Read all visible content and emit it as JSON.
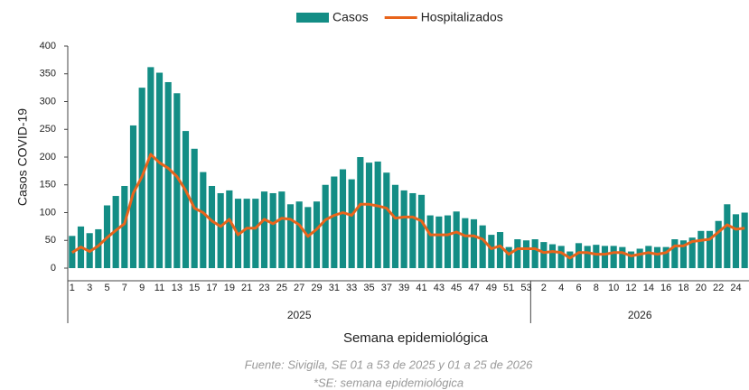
{
  "chart_data": {
    "type": "bar_line",
    "y_label": "Casos COVID-19",
    "x_label": "Semana epidemiológica",
    "groups": [
      "2025",
      "2026"
    ],
    "notes": [
      "Fuente: Sivigila, SE 01 a 53 de 2025 y 01 a 25 de 2026",
      "*SE: semana epidemiológica"
    ],
    "categories": [
      "1",
      null,
      "3",
      null,
      "5",
      null,
      "7",
      null,
      "9",
      null,
      "11",
      null,
      "13",
      null,
      "15",
      null,
      "17",
      null,
      "19",
      null,
      "21",
      null,
      "23",
      null,
      "25",
      null,
      "27",
      null,
      "29",
      null,
      "31",
      null,
      "33",
      null,
      "35",
      null,
      "37",
      null,
      "39",
      null,
      "41",
      null,
      "43",
      null,
      "45",
      null,
      "47",
      null,
      "49",
      null,
      "51",
      null,
      "53",
      null,
      "2",
      null,
      "4",
      null,
      "6",
      null,
      "8",
      null,
      "10",
      null,
      "12",
      null,
      "14",
      null,
      "16",
      null,
      "18",
      null,
      "20",
      null,
      "22",
      null,
      "24",
      null
    ],
    "series": [
      {
        "name": "Casos",
        "kind": "bar",
        "color": "#138d85",
        "values": [
          58,
          75,
          63,
          70,
          113,
          130,
          148,
          257,
          325,
          362,
          352,
          335,
          315,
          247,
          215,
          173,
          148,
          135,
          140,
          125,
          125,
          125,
          138,
          135,
          138,
          115,
          120,
          110,
          120,
          150,
          165,
          178,
          160,
          200,
          190,
          192,
          172,
          150,
          140,
          135,
          132,
          95,
          93,
          95,
          102,
          90,
          88,
          77,
          60,
          65,
          38,
          52,
          50,
          52,
          47,
          43,
          40,
          30,
          45,
          40,
          42,
          40,
          40,
          38,
          30,
          35,
          40,
          38,
          38,
          52,
          50,
          55,
          67,
          67,
          85,
          115,
          97,
          100
        ]
      },
      {
        "name": "Hospitalizados",
        "kind": "line",
        "color": "#e8641b",
        "values": [
          28,
          38,
          30,
          40,
          55,
          68,
          80,
          135,
          165,
          205,
          190,
          180,
          165,
          140,
          108,
          100,
          85,
          75,
          88,
          60,
          72,
          72,
          88,
          80,
          90,
          88,
          78,
          57,
          70,
          87,
          95,
          100,
          95,
          115,
          115,
          112,
          108,
          90,
          92,
          92,
          85,
          60,
          60,
          60,
          65,
          58,
          58,
          52,
          35,
          40,
          25,
          35,
          35,
          35,
          28,
          30,
          28,
          18,
          28,
          28,
          25,
          25,
          28,
          28,
          22,
          25,
          28,
          25,
          28,
          40,
          40,
          48,
          50,
          52,
          65,
          78,
          70,
          72
        ]
      }
    ],
    "ylim": [
      0,
      400
    ],
    "yticks": [
      0,
      50,
      100,
      150,
      200,
      250,
      300,
      350,
      400
    ]
  }
}
